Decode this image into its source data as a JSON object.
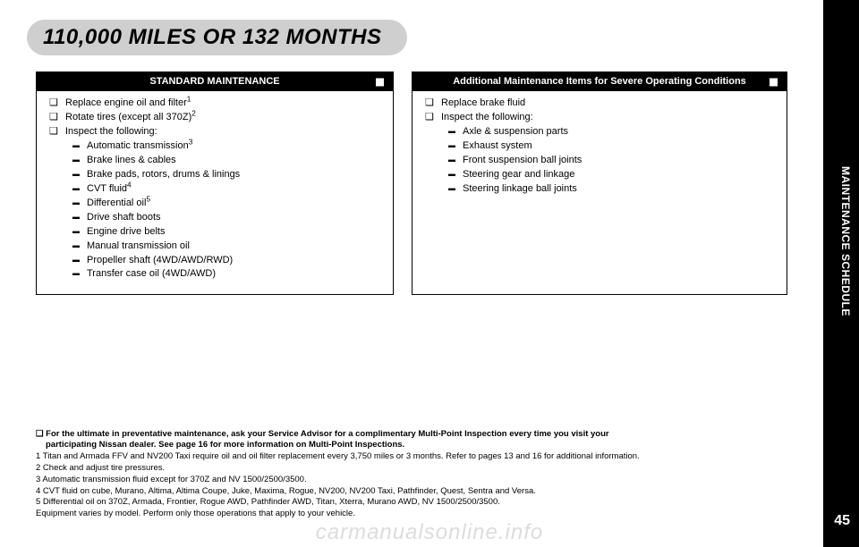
{
  "header": {
    "title": "110,000 MILES OR 132 MONTHS"
  },
  "side_tab": {
    "label": "MAINTENANCE SCHEDULE"
  },
  "page_number": "45",
  "standard": {
    "title": "STANDARD MAINTENANCE",
    "items": {
      "b0": "Replace engine oil and filter",
      "s0": "1",
      "b1": "Rotate tires (except all 370Z)",
      "s1": "2",
      "b2": "Inspect the following:",
      "d0": "Automatic transmission",
      "ds0": "3",
      "d1": "Brake lines & cables",
      "d2": "Brake pads, rotors, drums & linings",
      "d3": "CVT fluid",
      "ds3": "4",
      "d4": "Differential oil",
      "ds4": "5",
      "d5": "Drive shaft boots",
      "d6": "Engine drive belts",
      "d7": "Manual transmission oil",
      "d8": "Propeller shaft (4WD/AWD/RWD)",
      "d9": "Transfer case oil (4WD/AWD)"
    }
  },
  "severe": {
    "title": "Additional Maintenance Items for Severe Operating Conditions",
    "items": {
      "b0": "Replace brake fluid",
      "b1": "Inspect the following:",
      "d0": "Axle & suspension parts",
      "d1": "Exhaust system",
      "d2": "Front suspension ball joints",
      "d3": "Steering gear and linkage",
      "d4": "Steering linkage ball joints"
    }
  },
  "footnotes": {
    "lead_prefix": "❏ ",
    "lead1": "For the ultimate in preventative maintenance, ask your Service Advisor for a complimentary Multi-Point Inspection every time you visit your",
    "lead2": "participating Nissan dealer. See page 16 for more information on Multi-Point Inspections.",
    "n1": "1 Titan and Armada FFV and NV200 Taxi require oil and oil filter replacement every 3,750 miles or 3 months. Refer to pages 13 and 16 for additional information.",
    "n2": "2 Check and adjust tire pressures.",
    "n3": "3 Automatic transmission fluid except for 370Z and NV 1500/2500/3500.",
    "n4": "4 CVT fluid on cube, Murano, Altima, Altima Coupe, Juke, Maxima, Rogue, NV200, NV200 Taxi, Pathfinder, Quest, Sentra and Versa.",
    "n5": "5 Differential oil on 370Z, Armada, Frontier, Rogue AWD, Pathfinder AWD, Titan, Xterra, Murano AWD, NV 1500/2500/3500.",
    "n6": "Equipment varies by model. Perform only those operations that apply to your vehicle."
  },
  "watermark": "carmanualsonline.info"
}
